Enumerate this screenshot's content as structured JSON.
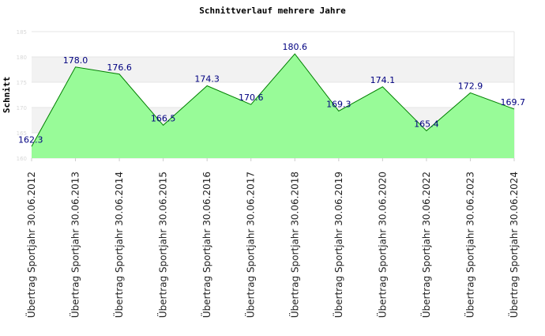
{
  "chart_data": {
    "type": "area",
    "title": "Schnittverlauf mehrere Jahre",
    "xlabel": "",
    "ylabel": "Schnitt",
    "ylim": [
      160,
      185
    ],
    "yticks": [
      160,
      165,
      170,
      175,
      180,
      185
    ],
    "grid": true,
    "colors": {
      "fill": "#98fb98",
      "line": "#008000",
      "label": "#000080",
      "band": "#f2f2f2"
    },
    "categories": [
      "Übertrag Sportjahr 30.06.2012",
      "Übertrag Sportjahr 30.06.2013",
      "Übertrag Sportjahr 30.06.2014",
      "Übertrag Sportjahr 30.06.2015",
      "Übertrag Sportjahr 30.06.2016",
      "Übertrag Sportjahr 30.06.2017",
      "Übertrag Sportjahr 30.06.2018",
      "Übertrag Sportjahr 30.06.2019",
      "Übertrag Sportjahr 30.06.2020",
      "Übertrag Sportjahr 30.06.2022",
      "Übertrag Sportjahr 30.06.2023",
      "Übertrag Sportjahr 30.06.2024"
    ],
    "values": [
      162.3,
      178.0,
      176.6,
      166.5,
      174.3,
      170.6,
      180.6,
      169.3,
      174.1,
      165.4,
      172.9,
      169.7
    ],
    "value_labels": [
      "162.3",
      "178.0",
      "176.6",
      "166.5",
      "174.3",
      "170.6",
      "180.6",
      "169.3",
      "174.1",
      "165.4",
      "172.9",
      "169.7"
    ]
  }
}
